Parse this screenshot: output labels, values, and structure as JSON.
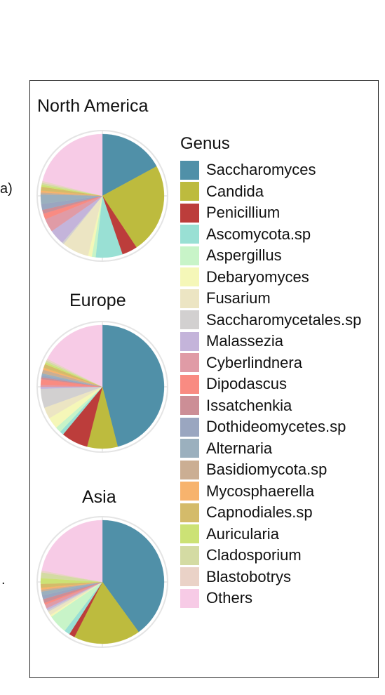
{
  "edge_labels": {
    "left_top": "a)",
    "left_bottom": "."
  },
  "chart_data": {
    "type": "pie",
    "legend": {
      "title": "Genus",
      "entries": [
        {
          "name": "Saccharomyces",
          "color": "#5090a8"
        },
        {
          "name": "Candida",
          "color": "#bdbb3e"
        },
        {
          "name": "Penicillium",
          "color": "#bc3d3b"
        },
        {
          "name": "Ascomycota.sp",
          "color": "#99e0d4"
        },
        {
          "name": "Aspergillus",
          "color": "#c8f4c8"
        },
        {
          "name": "Debaryomyces",
          "color": "#f5f7b8"
        },
        {
          "name": "Fusarium",
          "color": "#ece5c3"
        },
        {
          "name": "Saccharomycetales.sp",
          "color": "#d2d0d0"
        },
        {
          "name": "Malassezia",
          "color": "#c4b4da"
        },
        {
          "name": "Cyberlindnera",
          "color": "#e09ba6"
        },
        {
          "name": "Dipodascus",
          "color": "#f98b82"
        },
        {
          "name": "Issatchenkia",
          "color": "#cc8e96"
        },
        {
          "name": "Dothideomycetes.sp",
          "color": "#9aa6c0"
        },
        {
          "name": "Alternaria",
          "color": "#9bb0be"
        },
        {
          "name": "Basidiomycota.sp",
          "color": "#cbae93"
        },
        {
          "name": "Mycosphaerella",
          "color": "#f7b36d"
        },
        {
          "name": "Capnodiales.sp",
          "color": "#d4bb6a"
        },
        {
          "name": "Auricularia",
          "color": "#cce275"
        },
        {
          "name": "Cladosporium",
          "color": "#d4dba3"
        },
        {
          "name": "Blastobotrys",
          "color": "#ead2c7"
        },
        {
          "name": "Others",
          "color": "#f7cbe6"
        }
      ]
    },
    "pies": [
      {
        "title": "North America",
        "slices": [
          {
            "name": "Saccharomyces",
            "value": 17.0
          },
          {
            "name": "Candida",
            "value": 23.5
          },
          {
            "name": "Penicillium",
            "value": 4.0
          },
          {
            "name": "Ascomycota.sp",
            "value": 7.0
          },
          {
            "name": "Aspergillus",
            "value": 1.0
          },
          {
            "name": "Debaryomyces",
            "value": 1.0
          },
          {
            "name": "Fusarium",
            "value": 7.0
          },
          {
            "name": "Saccharomycetales.sp",
            "value": 0.5
          },
          {
            "name": "Malassezia",
            "value": 4.0
          },
          {
            "name": "Cyberlindnera",
            "value": 3.5
          },
          {
            "name": "Dipodascus",
            "value": 1.5
          },
          {
            "name": "Issatchenkia",
            "value": 1.0
          },
          {
            "name": "Dothideomycetes.sp",
            "value": 1.5
          },
          {
            "name": "Alternaria",
            "value": 2.5
          },
          {
            "name": "Basidiomycota.sp",
            "value": 0.5
          },
          {
            "name": "Mycosphaerella",
            "value": 0.5
          },
          {
            "name": "Capnodiales.sp",
            "value": 1.0
          },
          {
            "name": "Auricularia",
            "value": 0.5
          },
          {
            "name": "Cladosporium",
            "value": 0.5
          },
          {
            "name": "Blastobotrys",
            "value": 0.5
          },
          {
            "name": "Others",
            "value": 21.0
          }
        ]
      },
      {
        "title": "Europe",
        "slices": [
          {
            "name": "Saccharomyces",
            "value": 46.0
          },
          {
            "name": "Candida",
            "value": 8.0
          },
          {
            "name": "Penicillium",
            "value": 7.0
          },
          {
            "name": "Ascomycota.sp",
            "value": 1.0
          },
          {
            "name": "Aspergillus",
            "value": 1.5
          },
          {
            "name": "Debaryomyces",
            "value": 3.0
          },
          {
            "name": "Fusarium",
            "value": 3.0
          },
          {
            "name": "Saccharomycetales.sp",
            "value": 5.0
          },
          {
            "name": "Malassezia",
            "value": 0.5
          },
          {
            "name": "Cyberlindnera",
            "value": 0.5
          },
          {
            "name": "Dipodascus",
            "value": 1.5
          },
          {
            "name": "Issatchenkia",
            "value": 0.5
          },
          {
            "name": "Dothideomycetes.sp",
            "value": 0.5
          },
          {
            "name": "Alternaria",
            "value": 0.5
          },
          {
            "name": "Basidiomycota.sp",
            "value": 1.0
          },
          {
            "name": "Mycosphaerella",
            "value": 0.5
          },
          {
            "name": "Capnodiales.sp",
            "value": 1.0
          },
          {
            "name": "Auricularia",
            "value": 0.5
          },
          {
            "name": "Cladosporium",
            "value": 0.5
          },
          {
            "name": "Blastobotrys",
            "value": 0.5
          },
          {
            "name": "Others",
            "value": 17.5
          }
        ]
      },
      {
        "title": "Asia",
        "slices": [
          {
            "name": "Saccharomyces",
            "value": 40.0
          },
          {
            "name": "Candida",
            "value": 17.5
          },
          {
            "name": "Penicillium",
            "value": 1.5
          },
          {
            "name": "Ascomycota.sp",
            "value": 1.5
          },
          {
            "name": "Aspergillus",
            "value": 5.0
          },
          {
            "name": "Debaryomyces",
            "value": 0.5
          },
          {
            "name": "Fusarium",
            "value": 1.0
          },
          {
            "name": "Saccharomycetales.sp",
            "value": 0.5
          },
          {
            "name": "Malassezia",
            "value": 0.5
          },
          {
            "name": "Cyberlindnera",
            "value": 1.0
          },
          {
            "name": "Dipodascus",
            "value": 0.5
          },
          {
            "name": "Issatchenkia",
            "value": 1.0
          },
          {
            "name": "Dothideomycetes.sp",
            "value": 1.0
          },
          {
            "name": "Alternaria",
            "value": 1.0
          },
          {
            "name": "Basidiomycota.sp",
            "value": 0.5
          },
          {
            "name": "Mycosphaerella",
            "value": 0.5
          },
          {
            "name": "Capnodiales.sp",
            "value": 1.0
          },
          {
            "name": "Auricularia",
            "value": 1.5
          },
          {
            "name": "Cladosporium",
            "value": 1.5
          },
          {
            "name": "Blastobotrys",
            "value": 0.5
          },
          {
            "name": "Others",
            "value": 22.0
          }
        ]
      }
    ]
  }
}
